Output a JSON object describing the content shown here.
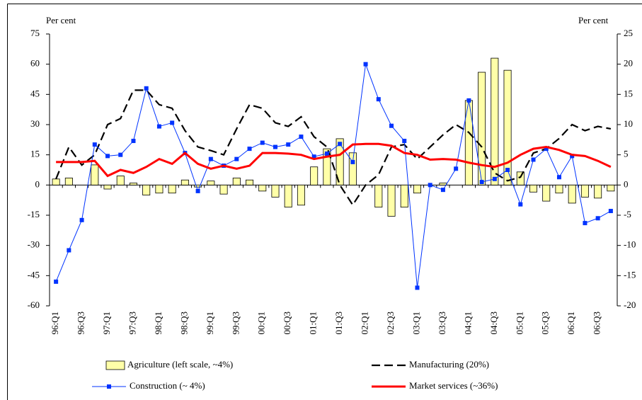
{
  "chart_data": {
    "type": "bar",
    "y_label": "Per cent",
    "y2_label": "Per cent",
    "categories": [
      "96:Q1",
      null,
      "96:Q3",
      null,
      "97:Q1",
      null,
      "97:Q3",
      null,
      "98:Q1",
      null,
      "98:Q3",
      null,
      "99:Q1",
      null,
      "99:Q3",
      null,
      "00:Q1",
      null,
      "00:Q3",
      null,
      "01:Q1",
      null,
      "01:Q3",
      null,
      "02:Q1",
      null,
      "02:Q3",
      null,
      "03:Q1",
      null,
      "03:Q3",
      null,
      "04:Q1",
      null,
      "04:Q3",
      null,
      "05:Q1",
      null,
      "05:Q3",
      null,
      "06:Q1",
      null,
      "06:Q3",
      null
    ],
    "ylim": [
      -60,
      75
    ],
    "yticks": [
      -60,
      -45,
      -30,
      -15,
      0,
      15,
      30,
      45,
      60,
      75
    ],
    "y2lim": [
      -20,
      25
    ],
    "y2ticks": [
      -20,
      -15,
      -10,
      -5,
      0,
      5,
      10,
      15,
      20,
      25
    ],
    "series": [
      {
        "name": "Agriculture (left scale, ~4%)",
        "type": "bar",
        "color": "#ffffa8",
        "values": [
          3,
          3.5,
          0,
          10,
          -2,
          4.5,
          1,
          -5,
          -4,
          -4,
          2.5,
          -1,
          2,
          -4.5,
          3.5,
          2.5,
          -3,
          -6,
          -11,
          -10,
          9,
          18,
          23,
          16,
          0,
          -11,
          -15.5,
          -11,
          -4,
          0,
          1,
          0,
          42,
          56,
          63,
          57,
          6.5,
          -3.5,
          -8,
          -4,
          -9,
          -6,
          -6.5,
          -3
        ]
      },
      {
        "name": "Manufacturing (20%)",
        "type": "line",
        "axis": "y2",
        "color": "#000000",
        "dash": true,
        "values": [
          1,
          6.3,
          3.3,
          5,
          10,
          11,
          15.7,
          15.7,
          13.3,
          12.7,
          9,
          6.3,
          5.7,
          5,
          9.3,
          13.3,
          12.7,
          10.3,
          9.7,
          11.3,
          8,
          6.3,
          0,
          -3.3,
          0,
          1.7,
          6.3,
          6.7,
          4.3,
          6.3,
          8.3,
          10,
          8.7,
          6.3,
          2,
          0.7,
          1.3,
          5.3,
          6,
          7.7,
          10,
          9,
          9.7,
          9.3
        ]
      },
      {
        "name": "Construction (~ 4%)",
        "type": "line",
        "axis": "y2",
        "color": "#0033ff",
        "marker": "square",
        "values": [
          -16,
          -10.8,
          -5.8,
          6.7,
          4.8,
          5,
          7.3,
          16,
          9.7,
          10.3,
          5.3,
          -1,
          4.3,
          3.2,
          4.3,
          6,
          7,
          6.3,
          6.7,
          8,
          4.7,
          5.2,
          6.8,
          3.8,
          20,
          14.2,
          9.8,
          7.3,
          -17,
          0,
          -0.8,
          2.7,
          14,
          0.5,
          1,
          2.5,
          -3.2,
          4.2,
          6,
          1.3,
          4.8,
          -6.3,
          -5.5,
          -4.3
        ]
      },
      {
        "name": "Market services (~36%)",
        "type": "line",
        "axis": "y2",
        "color": "#ff0000",
        "width": 3,
        "values": [
          3.8,
          3.8,
          3.8,
          4,
          1.5,
          2.5,
          2,
          3,
          4.3,
          3.5,
          5.3,
          3.5,
          2.7,
          3.2,
          2.7,
          3.2,
          5.3,
          5.3,
          5.2,
          5,
          4.3,
          4.7,
          5,
          6.7,
          6.8,
          6.8,
          6.5,
          5.3,
          5,
          4.2,
          4.3,
          4.2,
          3.7,
          3.3,
          3,
          3.7,
          5,
          6,
          6.3,
          5.8,
          5,
          4.8,
          4,
          3
        ]
      }
    ]
  }
}
